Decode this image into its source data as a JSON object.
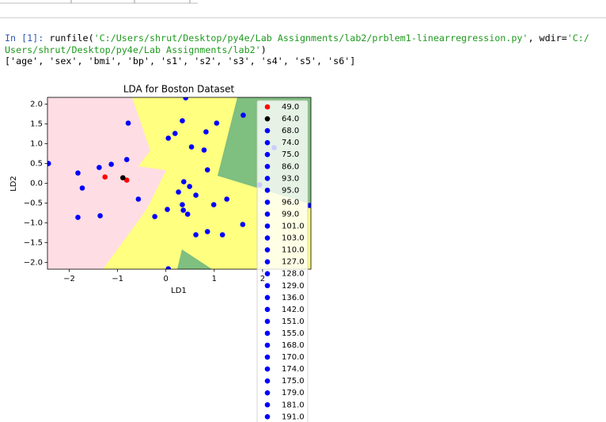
{
  "console": {
    "prompt": "In [1]:",
    "command": [
      "runfile(",
      "'C:/Users/shrut/Desktop/py4e/Lab Assignments/lab2/prblem1-linearregression.py'",
      ", wdir=",
      "'C:/Users/shrut/Desktop/py4e/Lab Assignments/lab2'",
      ")"
    ],
    "output": "['age', 'sex', 'bmi', 'bp', 's1', 's2', 's3', 's4', 's5', 's6']"
  },
  "chart_data": {
    "type": "scatter",
    "title": "LDA for Boston Dataset",
    "x_label": "LD1",
    "y_label": "LD2",
    "xlim": [
      -2.45,
      3.0
    ],
    "ylim": [
      -2.17,
      2.17
    ],
    "xticks": [
      {
        "value": -2,
        "label": "−2"
      },
      {
        "value": -1,
        "label": "−1"
      },
      0,
      1,
      2
    ],
    "yticks": [
      {
        "value": -2.0,
        "label": "−2.0"
      },
      {
        "value": -1.5,
        "label": "−1.5"
      },
      {
        "value": -1.0,
        "label": "−1.0"
      },
      {
        "value": -0.5,
        "label": "−0.5"
      },
      {
        "value": 0.0,
        "label": "0.0"
      },
      0.5,
      {
        "value": 1.0,
        "label": "1.0"
      },
      1.5,
      {
        "value": 2.0,
        "label": "2.0"
      }
    ],
    "legend": "upper right",
    "series": [
      {
        "name": "49.0",
        "color": "#ff0000",
        "x": [
          -1.26,
          -0.81
        ],
        "y": [
          0.16,
          0.08
        ]
      },
      {
        "name": "64.0",
        "color": "#000000",
        "x": [
          -0.89
        ],
        "y": [
          0.14
        ]
      },
      {
        "name": "68.0",
        "color": "#0000ff",
        "x": [
          -2.43,
          -1.82
        ],
        "y": [
          0.5,
          0.26
        ]
      },
      {
        "name": "74.0",
        "color": "#0000ff",
        "x": [
          -1.73,
          -1.82
        ],
        "y": [
          -0.12,
          -0.86
        ]
      },
      {
        "name": "75.0",
        "color": "#0000ff",
        "x": [
          -1.36,
          -1.38
        ],
        "y": [
          -0.82,
          0.4
        ]
      },
      {
        "name": "86.0",
        "color": "#0000ff",
        "x": [
          -1.13,
          -0.81
        ],
        "y": [
          0.48,
          0.6
        ]
      },
      {
        "name": "93.0",
        "color": "#0000ff",
        "x": [
          -0.78,
          -0.57
        ],
        "y": [
          1.52,
          -0.4
        ]
      },
      {
        "name": "95.0",
        "color": "#0000ff",
        "x": [
          -0.23,
          0.03
        ],
        "y": [
          -0.84,
          -0.66
        ]
      },
      {
        "name": "96.0",
        "color": "#0000ff",
        "x": [
          0.05,
          0.19
        ],
        "y": [
          1.14,
          1.26
        ]
      },
      {
        "name": "99.0",
        "color": "#0000ff",
        "x": [
          0.34,
          0.41
        ],
        "y": [
          1.58,
          2.16
        ]
      },
      {
        "name": "101.0",
        "color": "#0000ff",
        "x": [
          0.53,
          0.26
        ],
        "y": [
          0.92,
          -0.22
        ]
      },
      {
        "name": "103.0",
        "color": "#0000ff",
        "x": [
          0.37,
          0.49
        ],
        "y": [
          0.04,
          -0.08
        ]
      },
      {
        "name": "110.0",
        "color": "#0000ff",
        "x": [
          0.62,
          0.34
        ],
        "y": [
          -0.3,
          -0.54
        ]
      },
      {
        "name": "127.0",
        "color": "#0000ff",
        "x": [
          0.36,
          0.45
        ],
        "y": [
          -0.68,
          -0.78
        ]
      },
      {
        "name": "128.0",
        "color": "#0000ff",
        "x": [
          0.62,
          0.86
        ],
        "y": [
          -1.3,
          -1.22
        ]
      },
      {
        "name": "129.0",
        "color": "#0000ff",
        "x": [
          1.17,
          0.99
        ],
        "y": [
          -1.3,
          -0.54
        ]
      },
      {
        "name": "136.0",
        "color": "#0000ff",
        "x": [
          1.26
        ],
        "y": [
          -0.4
        ]
      },
      {
        "name": "142.0",
        "color": "#0000ff",
        "x": [
          0.79
        ],
        "y": [
          0.84
        ]
      },
      {
        "name": "151.0",
        "color": "#0000ff",
        "x": [
          0.83
        ],
        "y": [
          1.3
        ]
      },
      {
        "name": "155.0",
        "color": "#0000ff",
        "x": [
          1.05
        ],
        "y": [
          1.52
        ]
      },
      {
        "name": "168.0",
        "color": "#0000ff",
        "x": [
          0.86
        ],
        "y": [
          0.34
        ]
      },
      {
        "name": "170.0",
        "color": "#0000ff",
        "x": [
          1.6
        ],
        "y": [
          1.72
        ]
      },
      {
        "name": "174.0",
        "color": "#0000ff",
        "x": [
          1.59
        ],
        "y": [
          -1.04
        ]
      },
      {
        "name": "175.0",
        "color": "#0000ff",
        "x": [
          0.05
        ],
        "y": [
          -2.16
        ]
      },
      {
        "name": "179.0",
        "color": "#0000ff",
        "x": [
          1.94
        ],
        "y": [
          -0.04
        ]
      },
      {
        "name": "181.0",
        "color": "#0000ff",
        "x": [
          2.24
        ],
        "y": [
          0.9
        ]
      },
      {
        "name": "191.0",
        "color": "#0000ff",
        "x": [
          2.97
        ],
        "y": [
          -0.56
        ]
      }
    ]
  }
}
